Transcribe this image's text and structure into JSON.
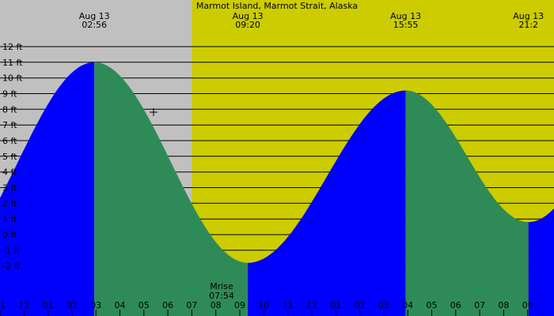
{
  "chart_data": {
    "type": "area",
    "title": "Marmot Island, Marmot Strait, Alaska",
    "y_unit": "ft",
    "y_ticks": [
      12,
      11,
      10,
      9,
      8,
      7,
      6,
      5,
      4,
      3,
      2,
      1,
      0,
      -1,
      -2
    ],
    "y_tick_labels": [
      "12 ft",
      "11 ft",
      "10 ft",
      "9 ft",
      "8 ft",
      "7 ft",
      "6 ft",
      "5 ft",
      "4 ft",
      "3 ft",
      "2 ft",
      "1 ft",
      "0 ft",
      "-1 ft",
      "-2 ft"
    ],
    "ylim": [
      -2.8,
      12.5
    ],
    "x_unit": "hours",
    "xlim": [
      23.0,
      46.1
    ],
    "x_tick_labels": [
      "11",
      "12",
      "01",
      "02",
      "03",
      "04",
      "05",
      "06",
      "07",
      "08",
      "09",
      "10",
      "11",
      "12",
      "01",
      "02",
      "03",
      "04",
      "05",
      "06",
      "07",
      "08",
      "09"
    ],
    "extremes": [
      {
        "type": "high",
        "date": "Aug 13",
        "time": "02:56",
        "height_ft": 11.0
      },
      {
        "type": "low",
        "date": "Aug 13",
        "time": "09:20",
        "height_ft": -1.8
      },
      {
        "type": "high",
        "date": "Aug 13",
        "time": "15:55",
        "height_ft": 9.2
      },
      {
        "type": "low",
        "date": "Aug 13",
        "time": "21:2",
        "height_ft": 0.8
      }
    ],
    "moonrise": {
      "label": "Mrise",
      "time": "07:54"
    },
    "daylight_start_time": "07:00",
    "colors": {
      "night": "#c0c0c0",
      "day": "#cccc00",
      "rising": "#0000ff",
      "falling": "#2e8b57",
      "gridline": "#000000"
    }
  }
}
